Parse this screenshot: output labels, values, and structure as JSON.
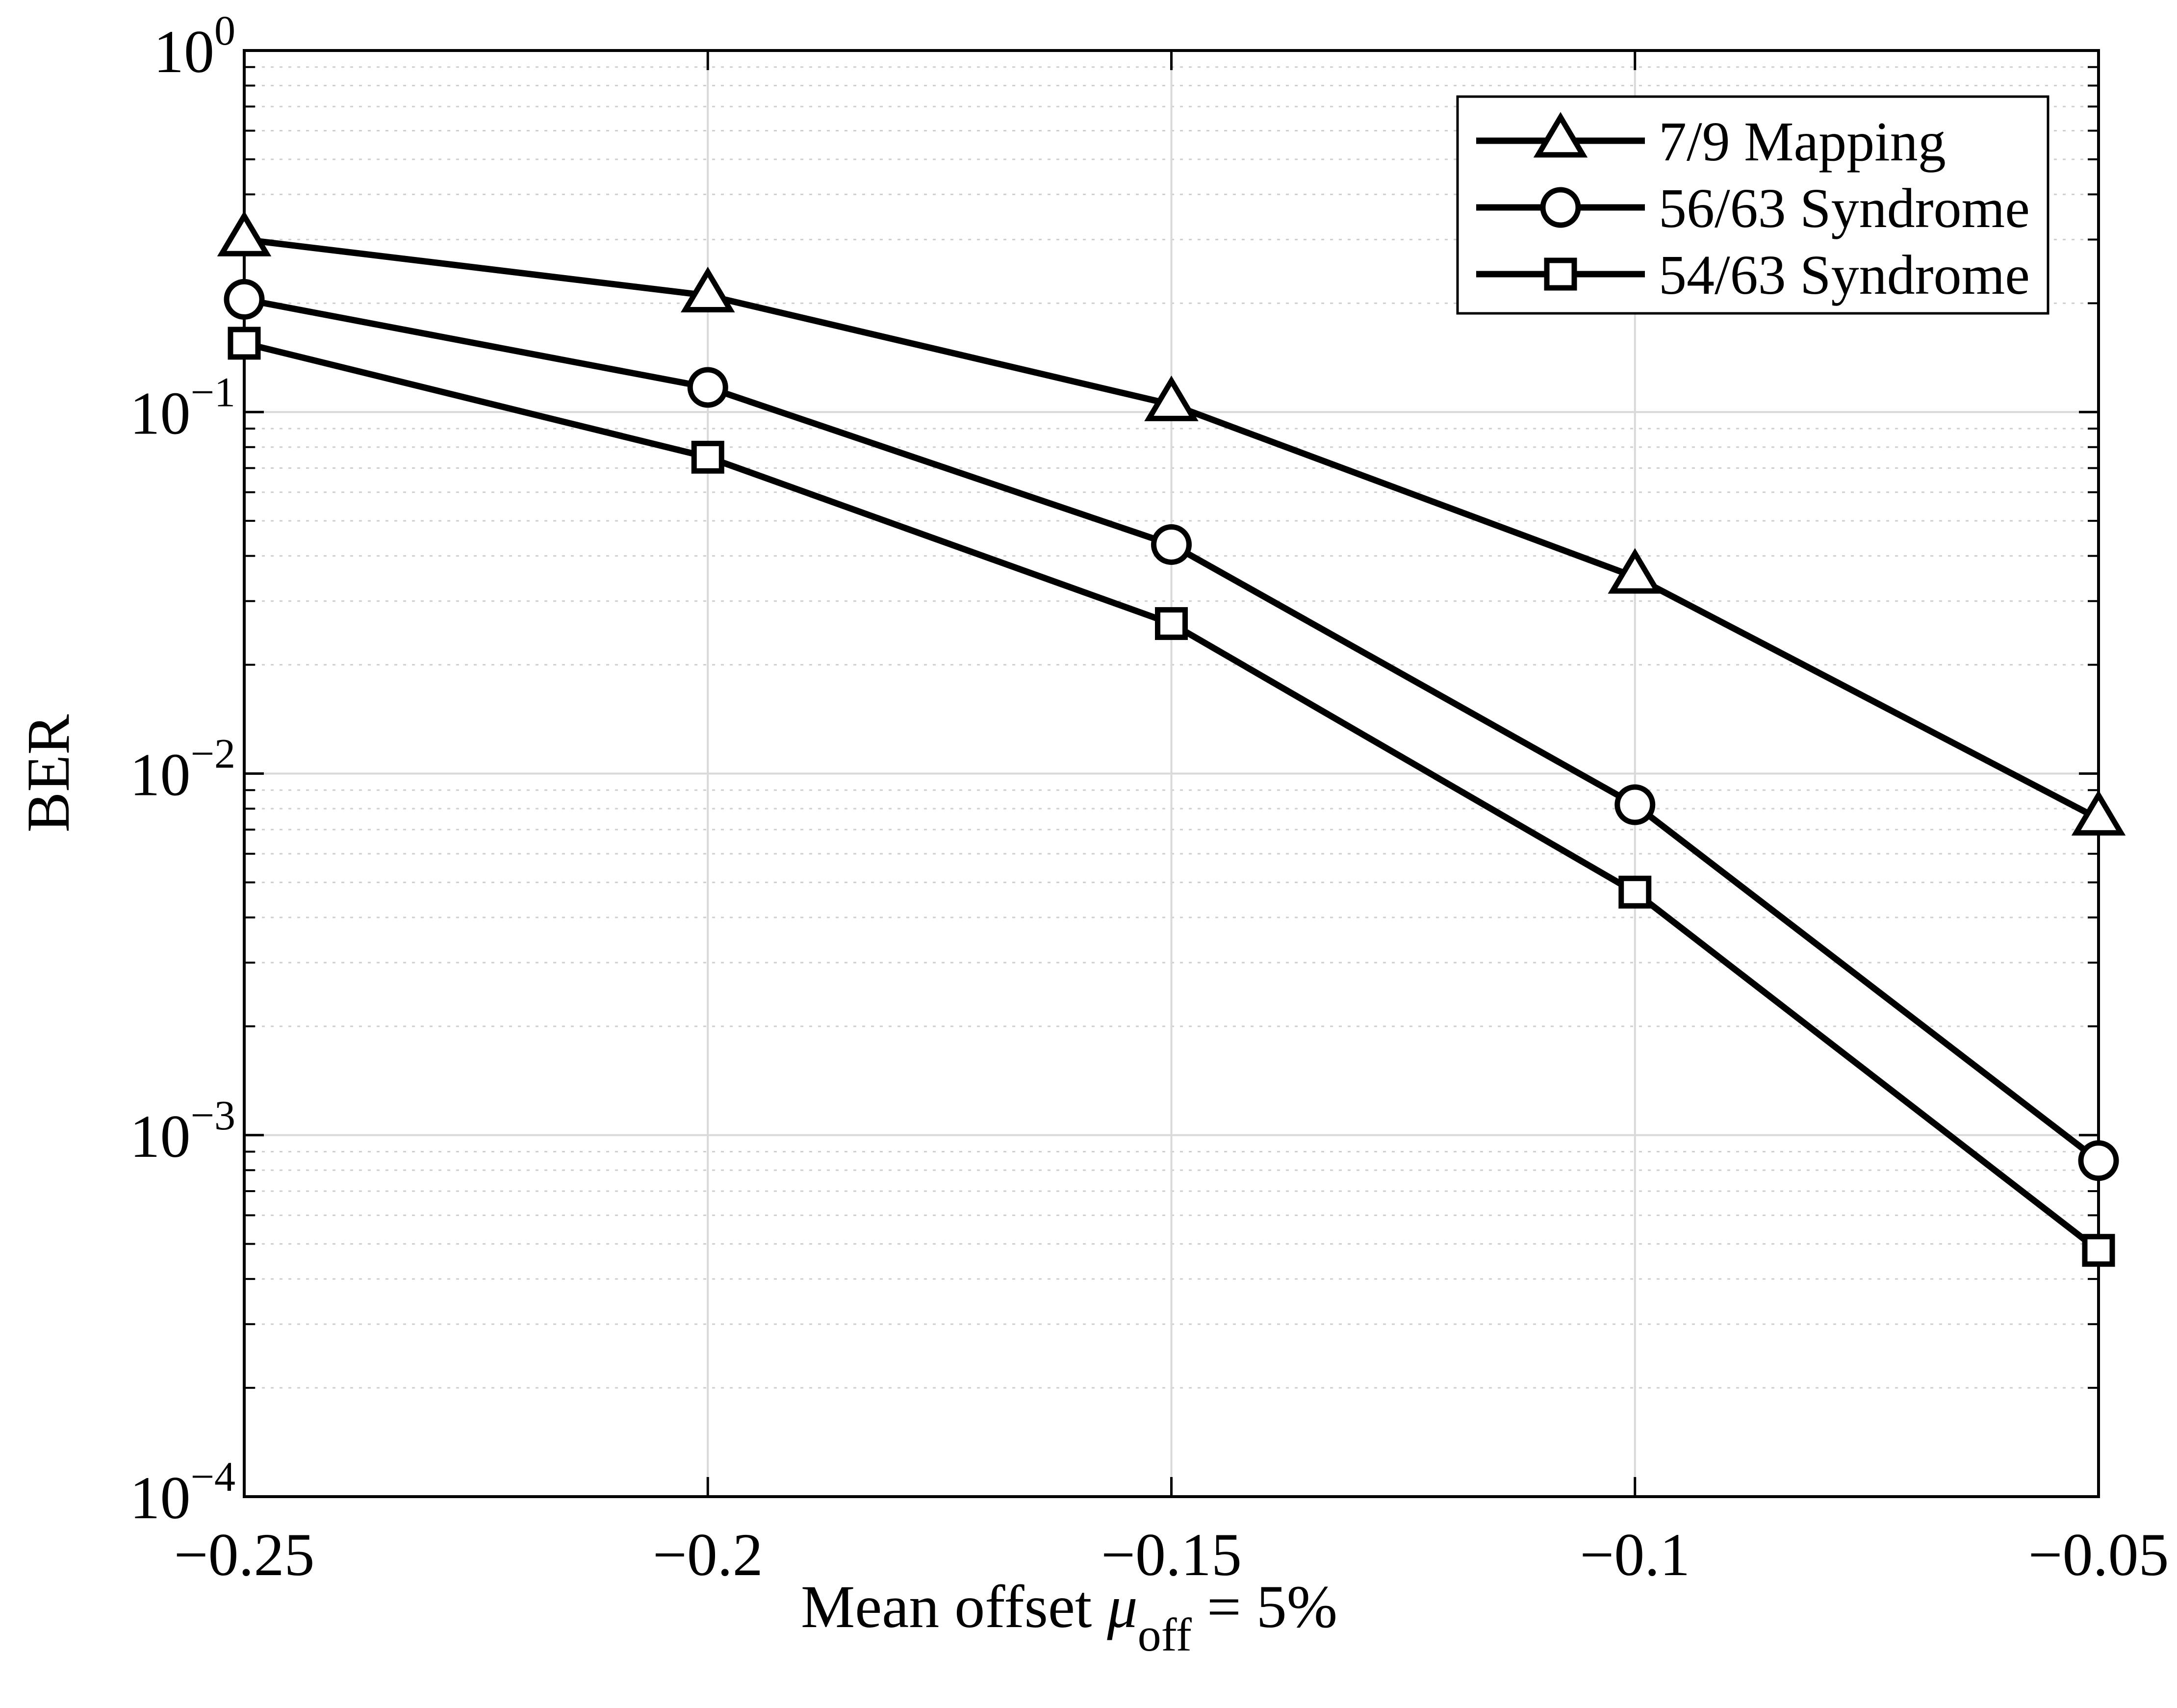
{
  "chart_data": {
    "type": "line",
    "title": "",
    "xlabel": {
      "main": "Mean offset ",
      "symbol": "μ",
      "subscript": "off",
      "suffix": " = 5%"
    },
    "ylabel": "BER",
    "x": [
      -0.25,
      -0.2,
      -0.15,
      -0.1,
      -0.05
    ],
    "xlim": [
      -0.25,
      -0.05
    ],
    "ylim": [
      0.0001,
      1
    ],
    "yscale": "log",
    "grid": true,
    "minor_grid": true,
    "xticks": [
      {
        "value": -0.25,
        "label": "−0.25"
      },
      {
        "value": -0.2,
        "label": "−0.2"
      },
      {
        "value": -0.15,
        "label": "−0.15"
      },
      {
        "value": -0.1,
        "label": "−0.1"
      },
      {
        "value": -0.05,
        "label": "−0.05"
      }
    ],
    "yticks": [
      {
        "value": 1,
        "base": "10",
        "exp": "0"
      },
      {
        "value": 0.1,
        "base": "10",
        "exp": "−1"
      },
      {
        "value": 0.01,
        "base": "10",
        "exp": "−2"
      },
      {
        "value": 0.001,
        "base": "10",
        "exp": "−3"
      },
      {
        "value": 0.0001,
        "base": "10",
        "exp": "−4"
      }
    ],
    "legend_position": "top-right",
    "series": [
      {
        "name": "7/9 Mapping",
        "marker": "triangle",
        "values": [
          0.3,
          0.21,
          0.105,
          0.035,
          0.0075
        ]
      },
      {
        "name": "56/63 Syndrome",
        "marker": "circle",
        "values": [
          0.205,
          0.117,
          0.043,
          0.0082,
          0.00085
        ]
      },
      {
        "name": "54/63 Syndrome",
        "marker": "square",
        "values": [
          0.155,
          0.075,
          0.026,
          0.0047,
          0.00048
        ]
      }
    ],
    "colors": {
      "line": "#000000",
      "grid_major": "#d9d9d9",
      "grid_minor": "#cfcfcf",
      "background": "#ffffff"
    }
  }
}
